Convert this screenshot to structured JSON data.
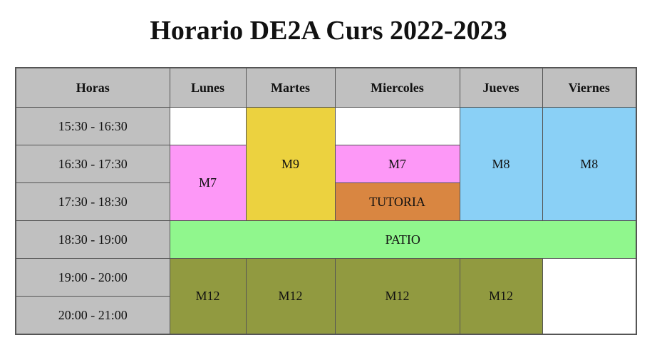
{
  "title": "Horario DE2A Curs 2022-2023",
  "headers": {
    "horas": "Horas",
    "lunes": "Lunes",
    "martes": "Martes",
    "miercoles": "Miercoles",
    "jueves": "Jueves",
    "viernes": "Viernes"
  },
  "rows": [
    {
      "hora": "15:30 - 16:30"
    },
    {
      "hora": "16:30 - 17:30"
    },
    {
      "hora": "17:30 - 18:30"
    },
    {
      "hora": "18:30 - 19:00"
    },
    {
      "hora": "19:00 - 20:00"
    },
    {
      "hora": "20:00 - 21:00"
    }
  ],
  "cells": {
    "lunes_m7": "M7",
    "martes_m9": "M9",
    "miercoles_m7": "M7",
    "miercoles_tutoria": "TUTORIA",
    "jueves_m8": "M8",
    "viernes_m8": "M8",
    "patio": "PATIO",
    "lunes_m12": "M12",
    "martes_m12": "M12",
    "miercoles_m12": "M12",
    "jueves_m12": "M12"
  },
  "colors": {
    "header_bg": "#c0c0c0",
    "m7": "#fd98f7",
    "m9": "#ecd23f",
    "m8": "#8ad0f6",
    "tutoria": "#d98641",
    "patio": "#90f78d",
    "m12": "#919a40"
  }
}
